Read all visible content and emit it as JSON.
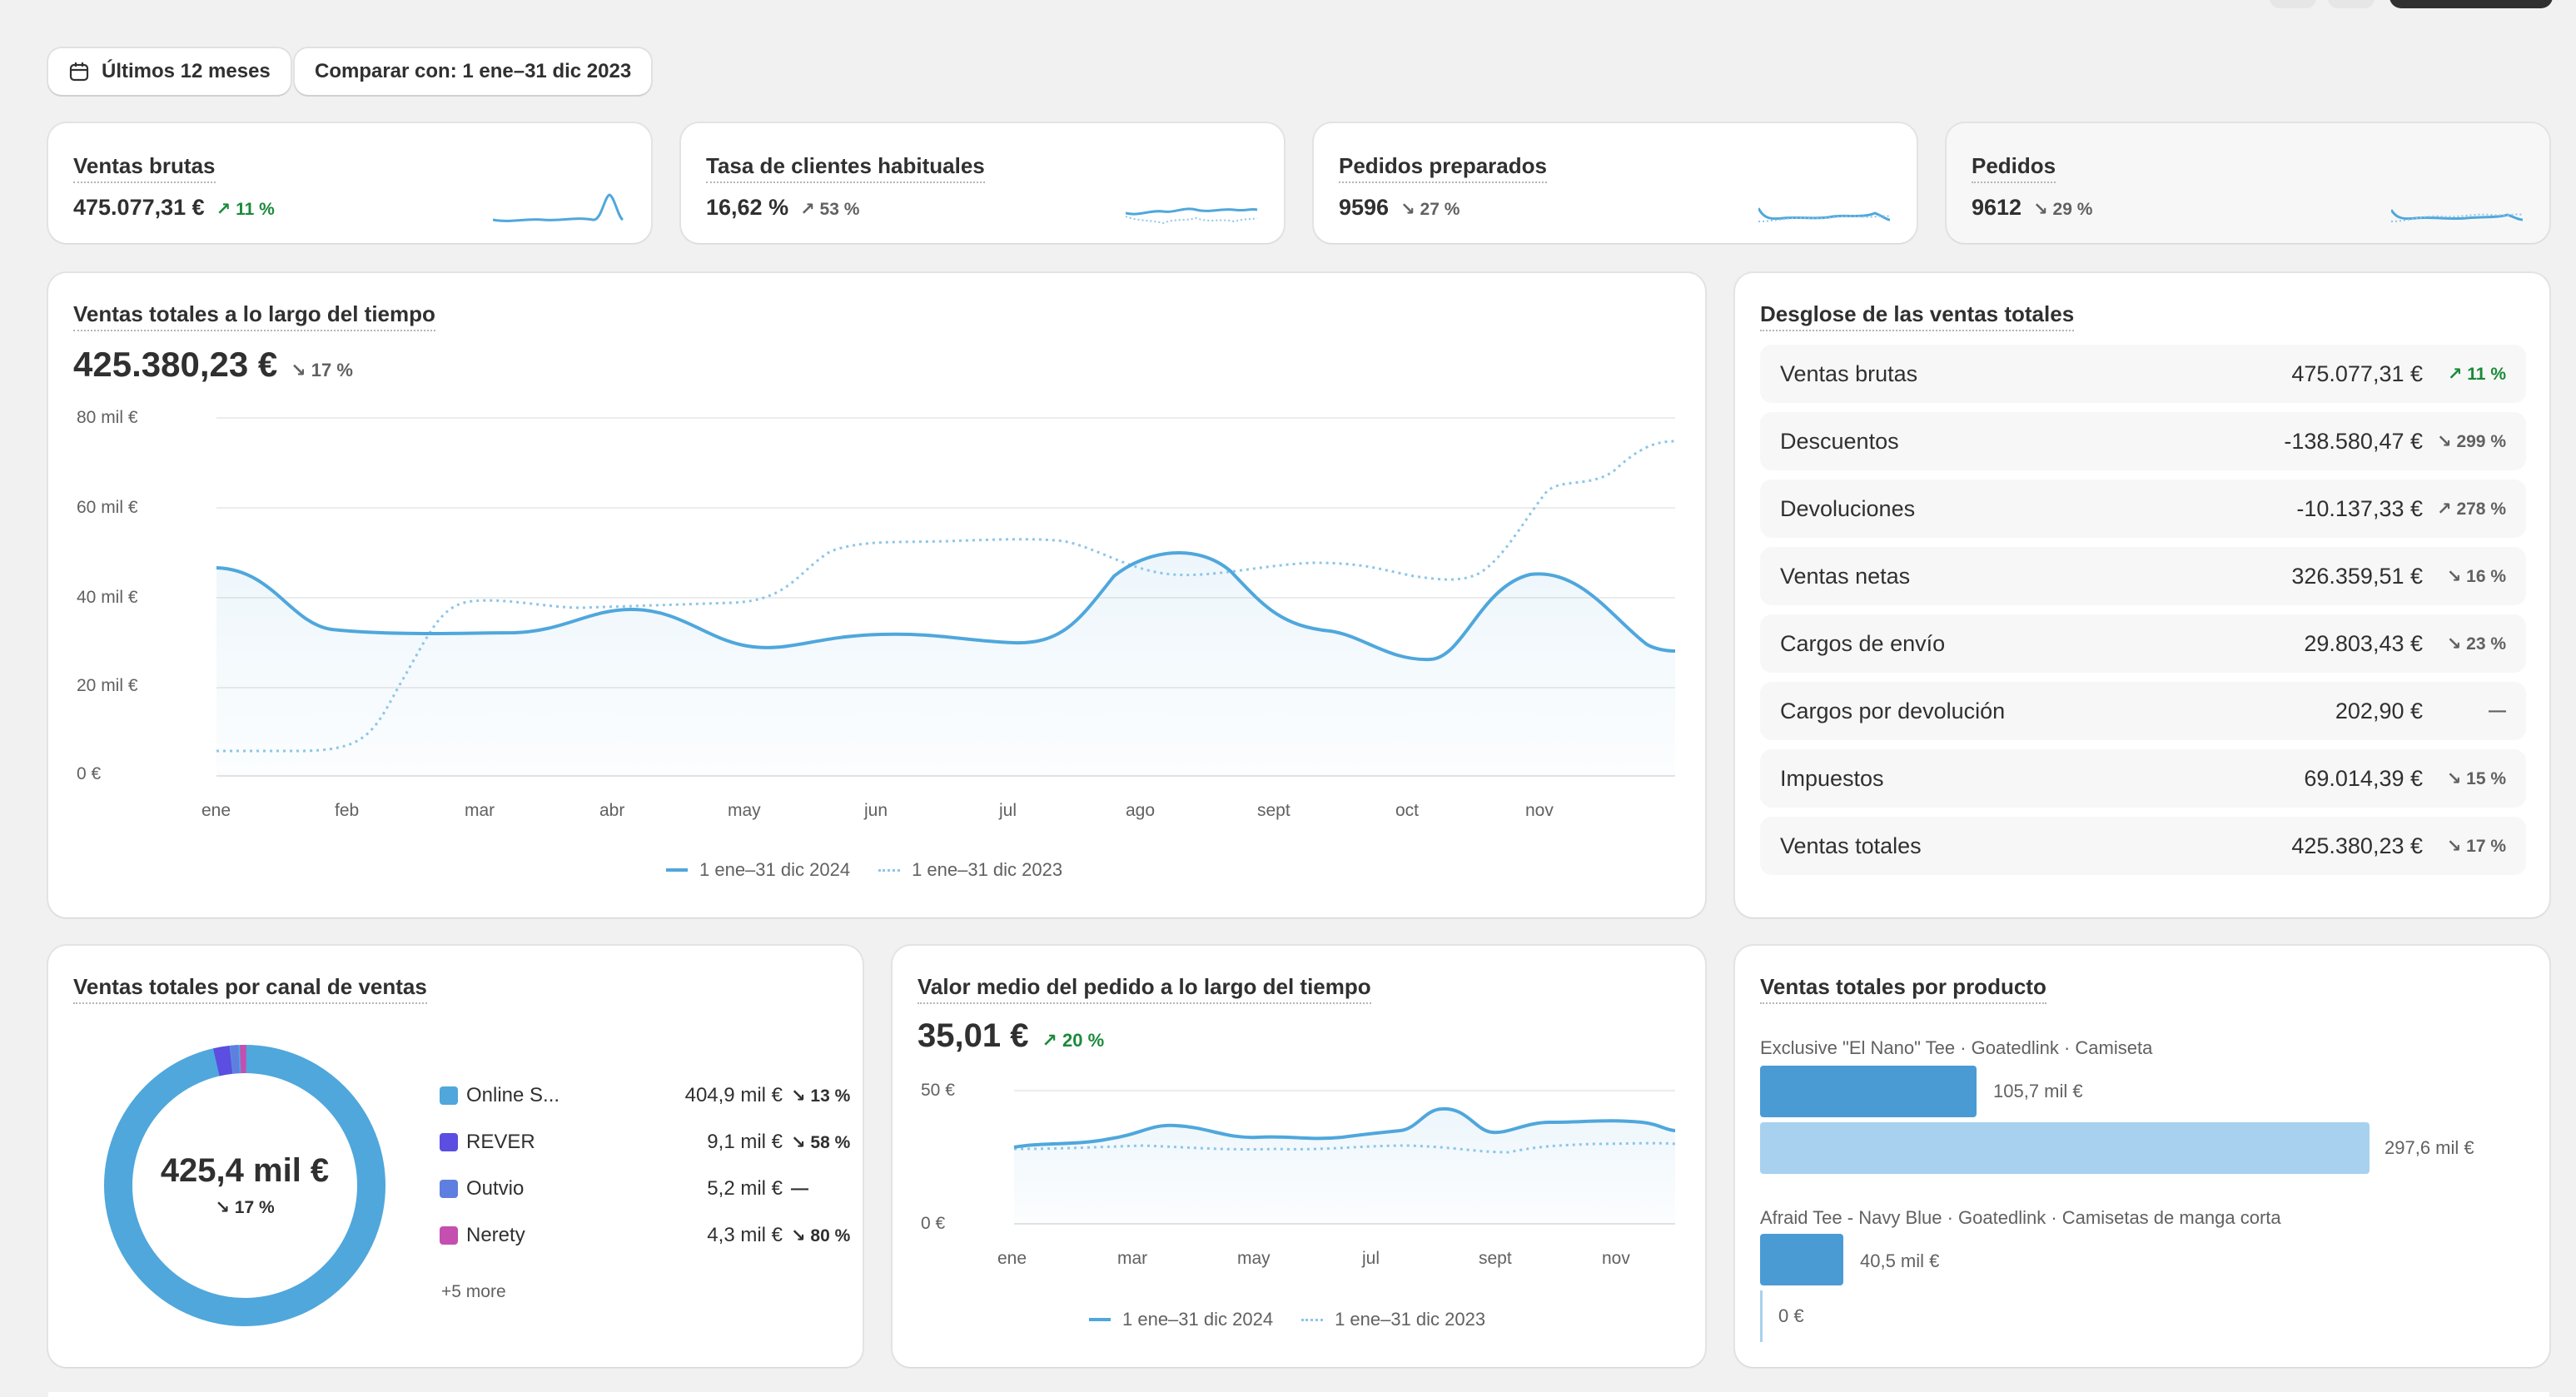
{
  "toolbar": {
    "date_range": "Últimos 12 meses",
    "compare": "Comparar con: 1 ene–31 dic 2023"
  },
  "kpis": [
    {
      "title": "Ventas brutas",
      "value": "475.077,31 €",
      "delta": "↗ 11 %",
      "direction": "up"
    },
    {
      "title": "Tasa de clientes habituales",
      "value": "16,62 %",
      "delta": "↗ 53 %",
      "direction": "up-neutral"
    },
    {
      "title": "Pedidos preparados",
      "value": "9596",
      "delta": "↘ 27 %",
      "direction": "down"
    },
    {
      "title": "Pedidos",
      "value": "9612",
      "delta": "↘ 29 %",
      "direction": "down"
    }
  ],
  "sales_over_time": {
    "title": "Ventas totales a lo largo del tiempo",
    "value": "425.380,23 €",
    "delta": "↘ 17 %",
    "y_ticks": [
      "80 mil €",
      "60 mil €",
      "40 mil €",
      "20 mil €",
      "0 €"
    ],
    "x_ticks": [
      "ene",
      "feb",
      "mar",
      "abr",
      "may",
      "jun",
      "jul",
      "ago",
      "sept",
      "oct",
      "nov"
    ],
    "legend": [
      "1 ene–31 dic 2024",
      "1 ene–31 dic 2023"
    ]
  },
  "breakdown": {
    "title": "Desglose de las ventas totales",
    "rows": [
      {
        "label": "Ventas brutas",
        "value": "475.077,31 €",
        "delta": "↗ 11 %",
        "up": true
      },
      {
        "label": "Descuentos",
        "value": "-138.580,47 €",
        "delta": "↘ 299 %",
        "up": false
      },
      {
        "label": "Devoluciones",
        "value": "-10.137,33 €",
        "delta": "↗ 278 %",
        "up": false
      },
      {
        "label": "Ventas netas",
        "value": "326.359,51 €",
        "delta": "↘ 16 %",
        "up": false
      },
      {
        "label": "Cargos de envío",
        "value": "29.803,43 €",
        "delta": "↘ 23 %",
        "up": false
      },
      {
        "label": "Cargos por devolución",
        "value": "202,90 €",
        "delta": "—",
        "up": false
      },
      {
        "label": "Impuestos",
        "value": "69.014,39 €",
        "delta": "↘ 15 %",
        "up": false
      },
      {
        "label": "Ventas totales",
        "value": "425.380,23 €",
        "delta": "↘ 17 %",
        "up": false
      }
    ]
  },
  "channels": {
    "title": "Ventas totales por canal de ventas",
    "total": "425,4 mil €",
    "total_delta": "↘ 17 %",
    "more": "+5 more",
    "items": [
      {
        "name": "Online S...",
        "value": "404,9 mil €",
        "delta": "↘ 13 %",
        "color": "#4fa7dc",
        "share": 0.952
      },
      {
        "name": "REVER",
        "value": "9,1 mil €",
        "delta": "↘ 58 %",
        "color": "#5b4ee0",
        "share": 0.021
      },
      {
        "name": "Outvio",
        "value": "5,2 mil €",
        "delta": "—",
        "color": "#5f7fe0",
        "share": 0.012
      },
      {
        "name": "Nerety",
        "value": "4,3 mil €",
        "delta": "↘ 80 %",
        "color": "#c44fb0",
        "share": 0.01
      }
    ]
  },
  "aov": {
    "title": "Valor medio del pedido a lo largo del tiempo",
    "value": "35,01 €",
    "delta": "↗ 20 %",
    "y_ticks": [
      "50 €",
      "0 €"
    ],
    "x_ticks": [
      "ene",
      "mar",
      "may",
      "jul",
      "sept",
      "nov"
    ],
    "legend": [
      "1 ene–31 dic 2024",
      "1 ene–31 dic 2023"
    ]
  },
  "products": {
    "title": "Ventas totales por producto",
    "items": [
      {
        "name": "Exclusive \"El Nano\" Tee · Goatedlink · Camiseta",
        "current": "105,7 mil €",
        "previous": "297,6 mil €",
        "current_value": 105.7,
        "previous_value": 297.6
      },
      {
        "name": "Afraid Tee - Navy Blue · Goatedlink · Camisetas de manga corta",
        "current": "40,5 mil €",
        "previous": "0 €",
        "current_value": 40.5,
        "previous_value": 0
      }
    ]
  },
  "colors": {
    "primary_line": "#4fa7dc",
    "compare_line": "#8cc6ea",
    "up": "#1a8a3a"
  }
}
